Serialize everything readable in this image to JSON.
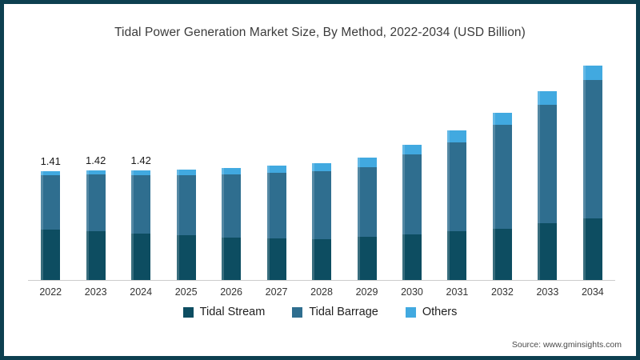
{
  "page": {
    "source": "Source: www.gminsights.com"
  },
  "chart_data": {
    "type": "bar",
    "stacked": true,
    "title": "Tidal Power Generation Market Size, By Method, 2022-2034 (USD Billion)",
    "xlabel": "",
    "ylabel": "",
    "ylim": [
      0,
      3.0
    ],
    "grid": false,
    "legend_position": "bottom",
    "axis_color": "#cccccc",
    "frame_color": "#0d4050",
    "categories": [
      "2022",
      "2023",
      "2024",
      "2025",
      "2026",
      "2027",
      "2028",
      "2029",
      "2030",
      "2031",
      "2032",
      "2033",
      "2034"
    ],
    "series": [
      {
        "name": "Tidal Stream",
        "color": "#0d4d61",
        "values": [
          0.65,
          0.63,
          0.6,
          0.58,
          0.55,
          0.54,
          0.53,
          0.56,
          0.59,
          0.63,
          0.67,
          0.74,
          0.8
        ]
      },
      {
        "name": "Tidal Barrage",
        "color": "#2f6e8f",
        "values": [
          0.71,
          0.74,
          0.76,
          0.78,
          0.82,
          0.85,
          0.88,
          0.91,
          1.04,
          1.16,
          1.35,
          1.53,
          1.8
        ]
      },
      {
        "name": "Others",
        "color": "#41a9e0",
        "values": [
          0.05,
          0.05,
          0.06,
          0.07,
          0.08,
          0.09,
          0.11,
          0.12,
          0.12,
          0.15,
          0.15,
          0.18,
          0.18
        ]
      }
    ],
    "totals": [
      1.41,
      1.42,
      1.42,
      1.43,
      1.45,
      1.48,
      1.52,
      1.59,
      1.75,
      1.94,
      2.17,
      2.45,
      2.78
    ],
    "data_labels": [
      "1.41",
      "1.42",
      "1.42",
      "",
      "",
      "",
      "",
      "",
      "",
      "",
      "",
      "",
      ""
    ]
  }
}
